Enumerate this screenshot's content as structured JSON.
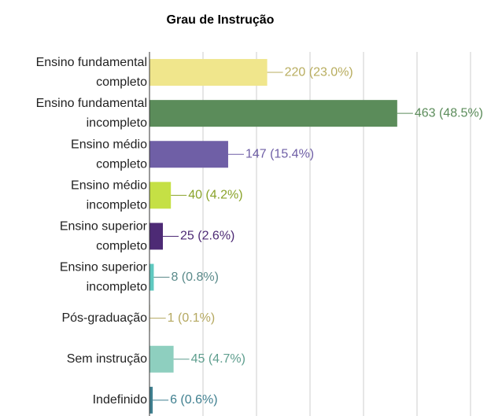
{
  "chart_data": {
    "type": "bar",
    "orientation": "horizontal",
    "title": "Grau de Instrução",
    "categories": [
      "Ensino fundamental completo",
      "Ensino fundamental incompleto",
      "Ensino médio completo",
      "Ensino médio incompleto",
      "Ensino superior completo",
      "Ensino superior incompleto",
      "Pós-graduação",
      "Sem instrução",
      "Indefinido"
    ],
    "values": [
      220,
      463,
      147,
      40,
      25,
      8,
      1,
      45,
      6
    ],
    "value_labels": [
      "220 (23.0%)",
      "463 (48.5%)",
      "147 (15.4%)",
      "40 (4.2%)",
      "25 (2.6%)",
      "8 (0.8%)",
      "1 (0.1%)",
      "45 (4.7%)",
      "6 (0.6%)"
    ],
    "colors": [
      "#f0e68c",
      "#5b8c5a",
      "#6f5fa6",
      "#c5e045",
      "#4d2a75",
      "#5fc9c0",
      "#d8cc8c",
      "#8ecfbf",
      "#3f7f8f"
    ],
    "label_colors": [
      "#b8ad5f",
      "#5b8c5a",
      "#6f5fa6",
      "#8aa32a",
      "#4d2a75",
      "#5a8a8a",
      "#b5a860",
      "#5e9e8e",
      "#3f7f8f"
    ],
    "xlim": [
      0,
      650
    ],
    "xticks": [
      0,
      100,
      200,
      300,
      400,
      500,
      600
    ],
    "grid": true
  }
}
